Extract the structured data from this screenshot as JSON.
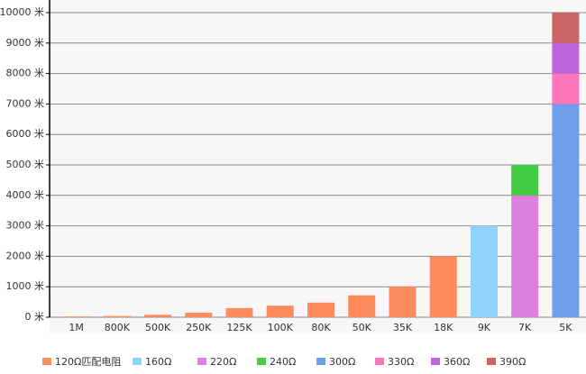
{
  "chart_data": {
    "type": "stacked_bar",
    "categories": [
      "1M",
      "800K",
      "500K",
      "250K",
      "125K",
      "100K",
      "80K",
      "50K",
      "35K",
      "18K",
      "9K",
      "7K",
      "5K"
    ],
    "series": [
      {
        "name": "120Ω匹配电阻",
        "color": "#ff8c5c",
        "values": [
          25,
          40,
          80,
          150,
          300,
          380,
          480,
          720,
          1000,
          2000,
          null,
          null,
          null
        ]
      },
      {
        "name": "160Ω",
        "color": "#8fd3fa",
        "values": [
          null,
          null,
          null,
          null,
          null,
          null,
          null,
          null,
          null,
          null,
          3000,
          null,
          null
        ]
      },
      {
        "name": "220Ω",
        "color": "#dd80dd",
        "values": [
          null,
          null,
          null,
          null,
          null,
          null,
          null,
          null,
          null,
          null,
          null,
          4000,
          null
        ]
      },
      {
        "name": "240Ω",
        "color": "#44cc44",
        "values": [
          null,
          null,
          null,
          null,
          null,
          null,
          null,
          null,
          null,
          null,
          null,
          1000,
          null
        ]
      },
      {
        "name": "300Ω",
        "color": "#6f9feb",
        "values": [
          null,
          null,
          null,
          null,
          null,
          null,
          null,
          null,
          null,
          null,
          null,
          null,
          7000
        ]
      },
      {
        "name": "330Ω",
        "color": "#ff77bb",
        "values": [
          null,
          null,
          null,
          null,
          null,
          null,
          null,
          null,
          null,
          null,
          null,
          null,
          1000
        ]
      },
      {
        "name": "360Ω",
        "color": "#bb66dd",
        "values": [
          null,
          null,
          null,
          null,
          null,
          null,
          null,
          null,
          null,
          null,
          null,
          null,
          1000
        ]
      },
      {
        "name": "390Ω",
        "color": "#cc6666",
        "values": [
          null,
          null,
          null,
          null,
          null,
          null,
          null,
          null,
          null,
          null,
          null,
          null,
          1000
        ]
      }
    ],
    "ylim": [
      0,
      10000
    ],
    "yticks": [
      {
        "value": 0,
        "label": "0 米"
      },
      {
        "value": 1000,
        "label": "1000 米"
      },
      {
        "value": 2000,
        "label": "2000 米"
      },
      {
        "value": 3000,
        "label": "3000 米"
      },
      {
        "value": 4000,
        "label": "4000 米"
      },
      {
        "value": 5000,
        "label": "5000 米"
      },
      {
        "value": 6000,
        "label": "6000 米"
      },
      {
        "value": 7000,
        "label": "7000 米"
      },
      {
        "value": 8000,
        "label": "8000 米"
      },
      {
        "value": 9000,
        "label": "9000 米"
      },
      {
        "value": 10000,
        "label": "10000 米"
      }
    ],
    "grid": true,
    "legend": "bottom"
  }
}
